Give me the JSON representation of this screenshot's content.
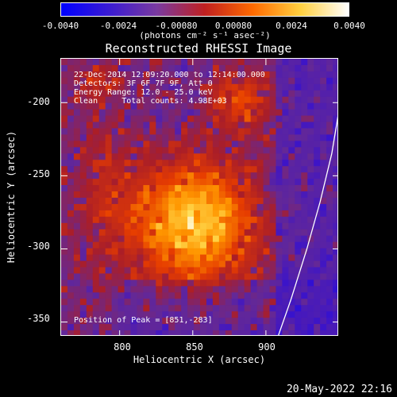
{
  "colorbar": {
    "ticks": [
      "-0.0040",
      "-0.0024",
      "-0.00080",
      "0.00080",
      "0.0024",
      "0.0040"
    ],
    "units": "(photons cm⁻² s⁻¹ asec⁻²)",
    "colors": [
      "#0000ff",
      "#3a1bd2",
      "#7a3aa0",
      "#c02020",
      "#ff6a00",
      "#ffd040",
      "#ffffff"
    ]
  },
  "annotations": {
    "time": "22-Dec-2014 12:09:20.000 to 12:14:00.000",
    "detectors": "Detectors: 3F 6F 7F 9F, Att 0",
    "energy": "Energy Range: 12.0 - 25.0 keV",
    "method": "Clean     Total counts: 4.98E+03",
    "peak": "Position of Peak = [851,-283]"
  },
  "chart_data": {
    "type": "heatmap",
    "title": "Reconstructed RHESSI Image",
    "xlabel": "Heliocentric X (arcsec)",
    "ylabel": "Heliocentric Y (arcsec)",
    "xlim": [
      760,
      950
    ],
    "ylim": [
      -360,
      -170
    ],
    "xticks": [
      "800",
      "850",
      "900"
    ],
    "yticks": [
      "-200",
      "-250",
      "-300",
      "-350"
    ],
    "colorbar_range": [
      -0.004,
      0.004
    ],
    "peak": [
      851,
      -283
    ],
    "limb_curve": [
      [
        903,
        -375
      ],
      [
        917,
        -335
      ],
      [
        928,
        -300
      ],
      [
        937,
        -268
      ],
      [
        945,
        -235
      ],
      [
        950,
        -205
      ]
    ]
  },
  "footer": "20-May-2022 22:16"
}
